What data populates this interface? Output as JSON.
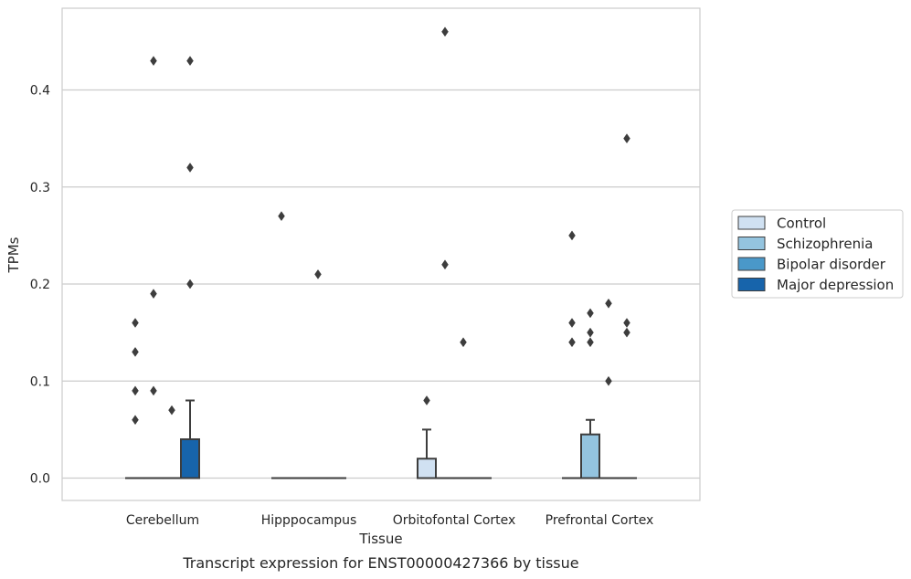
{
  "chart_data": {
    "type": "box",
    "xlabel": "Tissue",
    "ylabel": "TPMs",
    "caption": "Transcript expression for ENST00000427366 by tissue",
    "ylim": [
      -0.023,
      0.483
    ],
    "yticks": [
      0.0,
      0.1,
      0.2,
      0.3,
      0.4
    ],
    "ytick_labels": [
      "0.0",
      "0.1",
      "0.2",
      "0.3",
      "0.4"
    ],
    "categories": [
      "Cerebellum",
      "Hipppocampus",
      "Orbitofontal Cortex",
      "Prefrontal Cortex"
    ],
    "grid": "horizontal",
    "legend_position": "right",
    "series": [
      {
        "name": "Control",
        "color": "#d0e1f2",
        "boxes": [
          {
            "q1": 0,
            "median": 0,
            "q3": 0,
            "whisker_low": 0,
            "whisker_high": 0,
            "outliers": [
              0.06,
              0.09,
              0.13,
              0.16
            ]
          },
          {
            "q1": 0,
            "median": 0,
            "q3": 0,
            "whisker_low": 0,
            "whisker_high": 0,
            "outliers": [
              0.27
            ]
          },
          {
            "q1": 0,
            "median": 0,
            "q3": 0.02,
            "whisker_low": 0,
            "whisker_high": 0.05,
            "outliers": [
              0.08
            ]
          },
          {
            "q1": 0,
            "median": 0,
            "q3": 0,
            "whisker_low": 0,
            "whisker_high": 0,
            "outliers": [
              0.14,
              0.16,
              0.25
            ]
          }
        ]
      },
      {
        "name": "Schizophrenia",
        "color": "#94c4df",
        "boxes": [
          {
            "q1": 0,
            "median": 0,
            "q3": 0,
            "whisker_low": 0,
            "whisker_high": 0,
            "outliers": [
              0.09,
              0.19,
              0.43
            ]
          },
          {
            "q1": 0,
            "median": 0,
            "q3": 0,
            "whisker_low": 0,
            "whisker_high": 0,
            "outliers": []
          },
          {
            "q1": 0,
            "median": 0,
            "q3": 0,
            "whisker_low": 0,
            "whisker_high": 0,
            "outliers": [
              0.22,
              0.46
            ]
          },
          {
            "q1": 0,
            "median": 0,
            "q3": 0.045,
            "whisker_low": 0,
            "whisker_high": 0.06,
            "outliers": [
              0.14,
              0.15,
              0.17
            ]
          }
        ]
      },
      {
        "name": "Bipolar disorder",
        "color": "#4a98c9",
        "boxes": [
          {
            "q1": 0,
            "median": 0,
            "q3": 0,
            "whisker_low": 0,
            "whisker_high": 0,
            "outliers": [
              0.07
            ]
          },
          {
            "q1": 0,
            "median": 0,
            "q3": 0,
            "whisker_low": 0,
            "whisker_high": 0,
            "outliers": [
              0.21
            ]
          },
          {
            "q1": 0,
            "median": 0,
            "q3": 0,
            "whisker_low": 0,
            "whisker_high": 0,
            "outliers": [
              0.14
            ]
          },
          {
            "q1": 0,
            "median": 0,
            "q3": 0,
            "whisker_low": 0,
            "whisker_high": 0,
            "outliers": [
              0.1,
              0.18
            ]
          }
        ]
      },
      {
        "name": "Major depression",
        "color": "#1764ab",
        "boxes": [
          {
            "q1": 0,
            "median": 0,
            "q3": 0.04,
            "whisker_low": 0,
            "whisker_high": 0.08,
            "outliers": [
              0.2,
              0.32,
              0.43
            ]
          },
          {
            "q1": 0,
            "median": 0,
            "q3": 0,
            "whisker_low": 0,
            "whisker_high": 0,
            "outliers": []
          },
          {
            "q1": 0,
            "median": 0,
            "q3": 0,
            "whisker_low": 0,
            "whisker_high": 0,
            "outliers": []
          },
          {
            "q1": 0,
            "median": 0,
            "q3": 0,
            "whisker_low": 0,
            "whisker_high": 0,
            "outliers": [
              0.15,
              0.16,
              0.35
            ]
          }
        ]
      }
    ]
  }
}
